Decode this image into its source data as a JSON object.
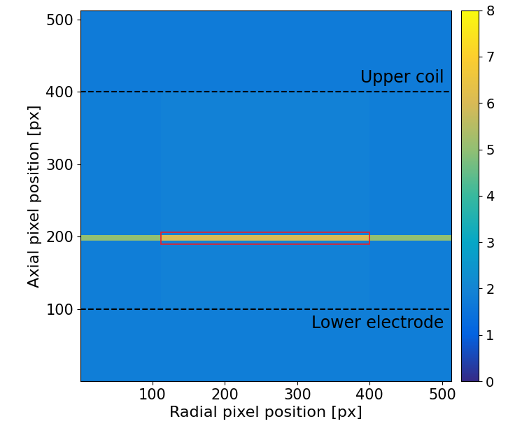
{
  "chart_data": {
    "type": "heatmap",
    "xlabel": "Radial pixel position [px]",
    "ylabel": "Axial pixel position [px]",
    "xlim": [
      0.5,
      512.5
    ],
    "ylim": [
      0.5,
      512.5
    ],
    "xticks": [
      100,
      200,
      300,
      400,
      500
    ],
    "yticks": [
      100,
      200,
      300,
      400,
      500
    ],
    "x_edges": [
      0.5,
      112,
      400,
      512.5
    ],
    "y_edges": [
      0.5,
      100,
      195,
      202,
      400,
      512.5
    ],
    "cells": [
      [
        1.8,
        1.8,
        1.8
      ],
      [
        1.8,
        1.9,
        1.8
      ],
      [
        5.0,
        6.0,
        5.0
      ],
      [
        1.8,
        1.9,
        1.8
      ],
      [
        1.7,
        1.7,
        1.7
      ]
    ],
    "colorbar": {
      "range": [
        0,
        8
      ],
      "ticks": [
        0,
        1,
        2,
        3,
        4,
        5,
        6,
        7,
        8
      ]
    },
    "annotations": [
      {
        "text": "Upper coil",
        "y": 400,
        "side": "above"
      },
      {
        "text": "Lower electrode",
        "y": 100,
        "side": "below"
      }
    ],
    "region": {
      "x": [
        112,
        400
      ],
      "y": [
        190,
        206
      ],
      "color": "#e8202a"
    }
  }
}
